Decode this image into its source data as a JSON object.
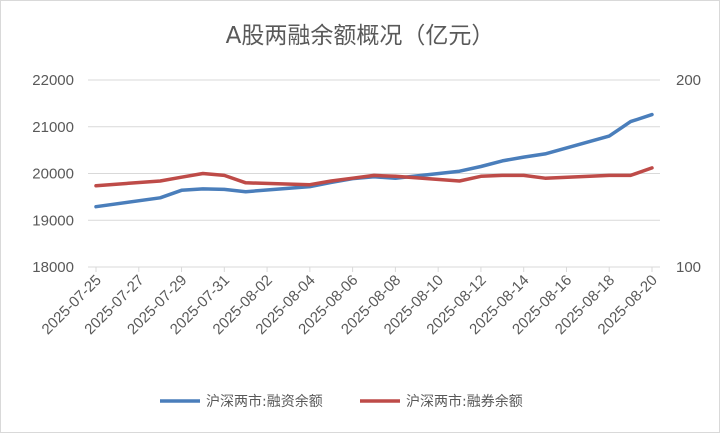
{
  "chart_data": {
    "type": "line",
    "title": "A股两融余额概况（亿元）",
    "x": [
      "2025-07-25",
      "2025-07-28",
      "2025-07-29",
      "2025-07-30",
      "2025-07-31",
      "2025-08-01",
      "2025-08-04",
      "2025-08-05",
      "2025-08-06",
      "2025-08-07",
      "2025-08-08",
      "2025-08-11",
      "2025-08-12",
      "2025-08-13",
      "2025-08-14",
      "2025-08-15",
      "2025-08-18",
      "2025-08-19",
      "2025-08-20"
    ],
    "x_tick_labels": [
      "2025-07-25",
      "2025-07-27",
      "2025-07-29",
      "2025-07-31",
      "2025-08-02",
      "2025-08-04",
      "2025-08-06",
      "2025-08-08",
      "2025-08-10",
      "2025-08-12",
      "2025-08-14",
      "2025-08-16",
      "2025-08-18",
      "2025-08-20"
    ],
    "y_left": {
      "ticks": [
        "18000",
        "19000",
        "20000",
        "21000",
        "22000"
      ],
      "range": [
        18000,
        22000
      ]
    },
    "y_right": {
      "ticks": [
        "100",
        "200"
      ],
      "range": [
        100,
        200
      ]
    },
    "series": [
      {
        "name": "沪深两市:融资余额",
        "axis": "left",
        "color": "#4a7ebb",
        "values": [
          19290,
          19480,
          19640,
          19670,
          19660,
          19610,
          19720,
          19810,
          19890,
          19930,
          19900,
          20050,
          20150,
          20270,
          20350,
          20420,
          20800,
          21110,
          21260
        ]
      },
      {
        "name": "沪深两市:融券余额",
        "axis": "right",
        "color": "#be4b48",
        "values": [
          143.5,
          146.0,
          148.0,
          150.0,
          149.0,
          145.0,
          144.0,
          146.0,
          147.5,
          149.0,
          148.5,
          146.0,
          148.5,
          149.0,
          149.0,
          147.5,
          149.0,
          149.0,
          153.0
        ]
      }
    ],
    "legend_position": "bottom",
    "grid": true
  }
}
